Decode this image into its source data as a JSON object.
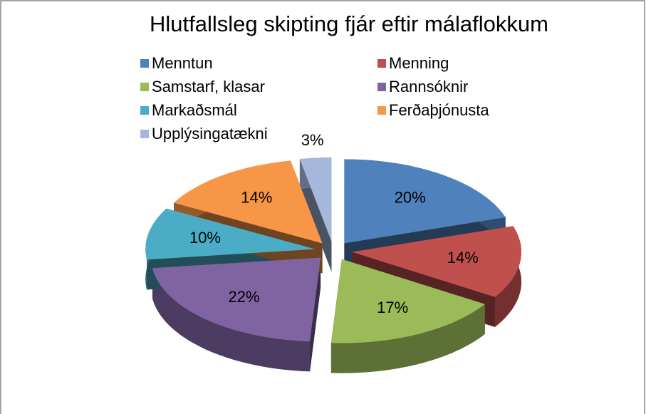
{
  "chart_data": {
    "type": "pie3d",
    "title": "Hlutfallsleg skipting fjár eftir málaflokkum",
    "categories": [
      "Menntun",
      "Menning",
      "Samstarf, klasar",
      "Rannsóknir",
      "Markaðsmál",
      "Ferðaþjónusta",
      "Upplýsingatækni"
    ],
    "values": [
      20,
      14,
      17,
      22,
      10,
      14,
      3
    ],
    "value_labels": [
      "20%",
      "14%",
      "17%",
      "22%",
      "10%",
      "14%",
      "3%"
    ],
    "colors": [
      "#4f81bd",
      "#c0504d",
      "#9bbb59",
      "#8064a2",
      "#4bacc6",
      "#f79646",
      "#a5b8dc"
    ],
    "legend": "top"
  }
}
